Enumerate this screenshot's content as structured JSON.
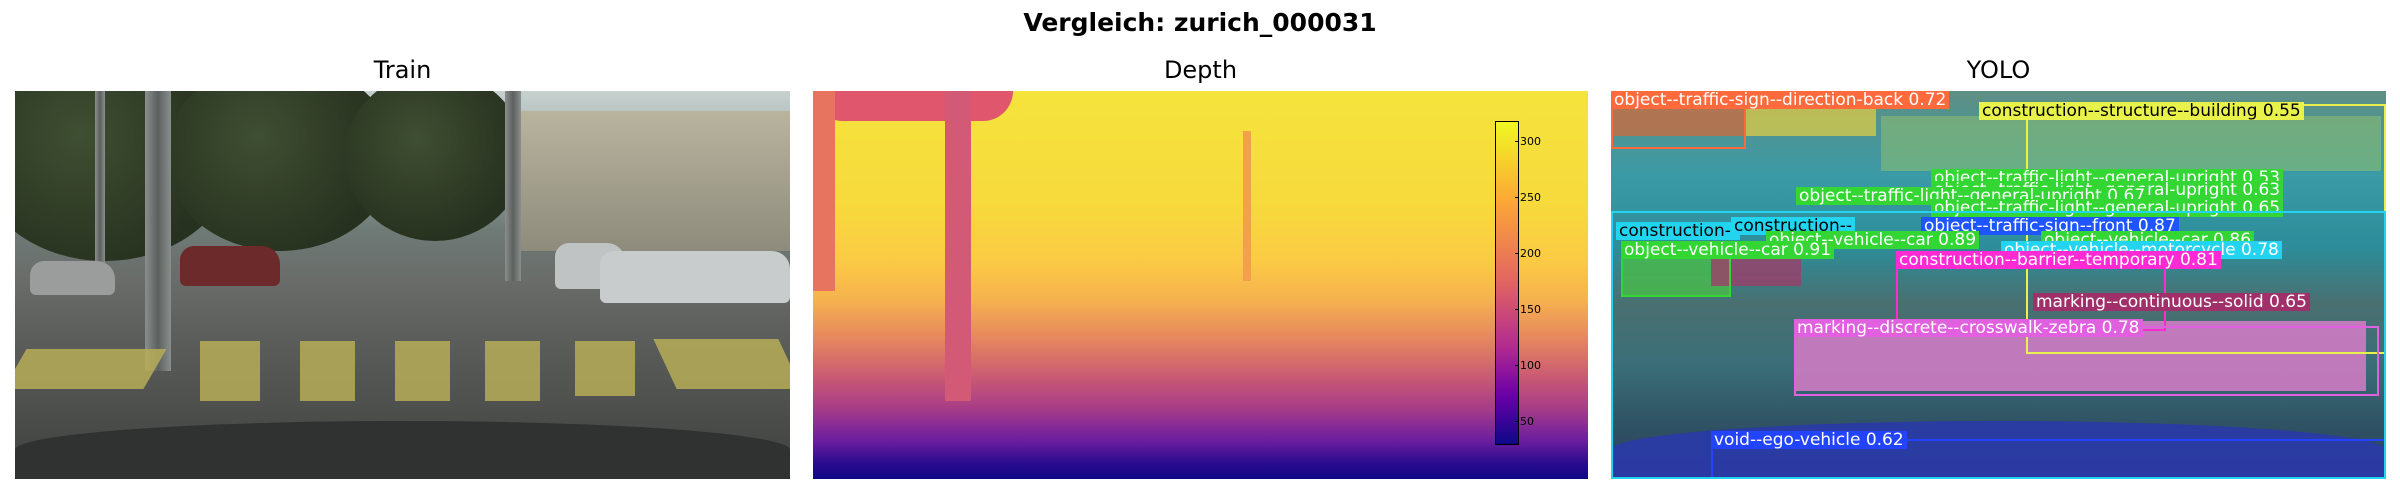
{
  "figure": {
    "title": "Vergleich: zurich_000031"
  },
  "panels": {
    "train": {
      "title": "Train"
    },
    "depth": {
      "title": "Depth",
      "colorbar_ticks": [
        "300",
        "250",
        "200",
        "150",
        "100",
        "50"
      ]
    },
    "yolo": {
      "title": "YOLO",
      "detections": [
        {
          "label": "object--traffic-sign--direction-back 0.72",
          "color": "#ff6a3d"
        },
        {
          "label": "construction--structure--building 0.55",
          "color": "#e8f24b"
        },
        {
          "label": "object--traffic-light--general-upright 0.53",
          "color": "#33d633"
        },
        {
          "label": "object--traffic-light--general-upright 0.63",
          "color": "#33d633"
        },
        {
          "label": "object--traffic-light--general-upright 0.67",
          "color": "#33d633"
        },
        {
          "label": "object--traffic-light--general-upright 0.65",
          "color": "#33d633"
        },
        {
          "label": "object--traffic-sign--front 0.87",
          "color": "#1f55ff"
        },
        {
          "label": "construction--",
          "color": "#22d4f0"
        },
        {
          "label": "construction--",
          "color": "#22d4f0"
        },
        {
          "label": "object--vehicle--car 0.89",
          "color": "#33d633"
        },
        {
          "label": "object--vehicle--car 0.86",
          "color": "#33d633"
        },
        {
          "label": "object--vehicle--car 0.91",
          "color": "#33d633"
        },
        {
          "label": "object--vehicle--motorcycle 0.78",
          "color": "#22d4f0"
        },
        {
          "label": "construction--barrier--temporary 0.81",
          "color": "#ff2ad4"
        },
        {
          "label": "marking--continuous--solid 0.65",
          "color": "#a0306a"
        },
        {
          "label": "marking--discrete--crosswalk-zebra 0.78",
          "color": "#e060e0"
        },
        {
          "label": "void--ego-vehicle 0.62",
          "color": "#2244ff"
        }
      ]
    }
  }
}
